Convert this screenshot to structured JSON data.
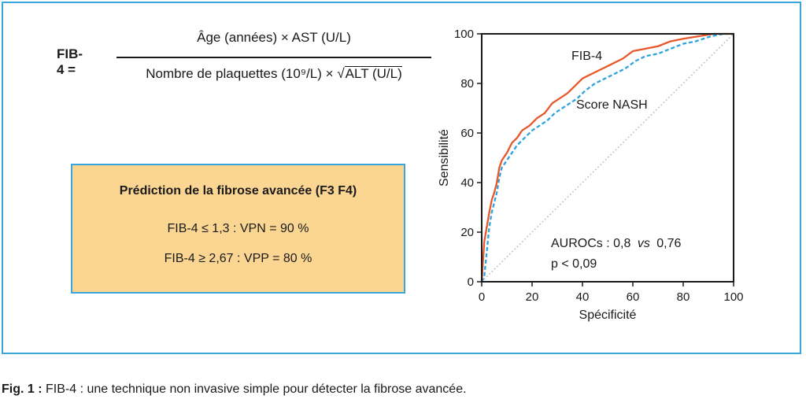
{
  "formula": {
    "label": "FIB-4 =",
    "numerator": "Âge (années) × AST (U/L)",
    "denominator_prefix": "Nombre de plaquettes (10⁹/L) ×",
    "sqrt_symbol": "√",
    "denominator_sqrt": "ALT (U/L)"
  },
  "prediction": {
    "title": "Prédiction de la fibrose avancée (F3 F4)",
    "line1": "FIB-4 ≤ 1,3 : VPN = 90 %",
    "line2": "FIB-4 ≥ 2,67 : VPP = 80 %"
  },
  "chart_data": {
    "type": "line",
    "xlabel": "Spécificité",
    "ylabel": "Sensibilité",
    "xlim": [
      0,
      100
    ],
    "ylim": [
      0,
      100
    ],
    "xticks": [
      "0",
      "20",
      "40",
      "60",
      "80",
      "100"
    ],
    "yticks": [
      "0",
      "20",
      "40",
      "60",
      "80",
      "100"
    ],
    "grid": false,
    "series": [
      {
        "name": "FIB-4",
        "color": "#e8572b",
        "style": "solid",
        "points": [
          [
            0,
            0
          ],
          [
            0.5,
            8
          ],
          [
            1,
            16
          ],
          [
            2,
            22
          ],
          [
            3,
            28
          ],
          [
            4,
            33
          ],
          [
            5,
            36
          ],
          [
            6,
            40
          ],
          [
            7,
            46
          ],
          [
            8,
            49
          ],
          [
            10,
            52
          ],
          [
            12,
            56
          ],
          [
            14,
            58
          ],
          [
            16,
            61
          ],
          [
            19,
            63
          ],
          [
            22,
            66
          ],
          [
            25,
            68
          ],
          [
            28,
            72
          ],
          [
            31,
            74
          ],
          [
            34,
            76
          ],
          [
            37,
            79
          ],
          [
            40,
            82
          ],
          [
            44,
            84
          ],
          [
            48,
            86
          ],
          [
            52,
            88
          ],
          [
            56,
            90
          ],
          [
            60,
            93
          ],
          [
            65,
            94
          ],
          [
            70,
            95
          ],
          [
            75,
            97
          ],
          [
            80,
            98
          ],
          [
            86,
            99
          ],
          [
            92,
            100
          ],
          [
            100,
            100
          ]
        ]
      },
      {
        "name": "Score NASH",
        "color": "#2ea3dc",
        "style": "dashed",
        "points": [
          [
            0,
            0
          ],
          [
            1,
            2
          ],
          [
            2,
            12
          ],
          [
            3,
            22
          ],
          [
            4,
            28
          ],
          [
            5,
            32
          ],
          [
            6,
            36
          ],
          [
            7,
            42
          ],
          [
            8,
            46
          ],
          [
            10,
            49
          ],
          [
            12,
            52
          ],
          [
            14,
            55
          ],
          [
            17,
            58
          ],
          [
            20,
            61
          ],
          [
            23,
            63
          ],
          [
            26,
            65
          ],
          [
            29,
            68
          ],
          [
            32,
            70
          ],
          [
            35,
            72
          ],
          [
            38,
            74
          ],
          [
            41,
            77
          ],
          [
            45,
            80
          ],
          [
            49,
            82
          ],
          [
            53,
            84
          ],
          [
            57,
            86
          ],
          [
            61,
            89
          ],
          [
            65,
            91
          ],
          [
            70,
            92
          ],
          [
            75,
            94
          ],
          [
            80,
            96
          ],
          [
            85,
            97
          ],
          [
            91,
            99
          ],
          [
            96,
            100
          ],
          [
            100,
            100
          ]
        ]
      },
      {
        "name": "",
        "color": "#b5b5b5",
        "style": "dotted",
        "points": [
          [
            0,
            0
          ],
          [
            100,
            100
          ]
        ]
      }
    ],
    "annotations": {
      "fib4_label": "FIB-4",
      "nash_label": "Score NASH",
      "auroc_line1": "AUROCs : 0,8",
      "auroc_vs": "vs",
      "auroc_line1_end": "0,76",
      "auroc_line2": "p < 0,09"
    }
  },
  "caption": {
    "label": "Fig. 1 :",
    "text": "FIB-4 : une technique non invasive simple pour détecter la fibrose avancée."
  },
  "colors": {
    "frame": "#3aa7dc",
    "box_fill": "#fbd692",
    "fib4": "#e8572b",
    "nash": "#2ea3dc"
  }
}
